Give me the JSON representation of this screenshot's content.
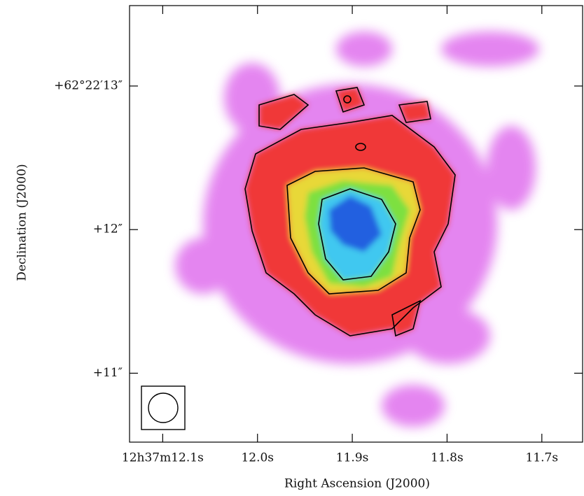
{
  "chart_data": {
    "type": "image",
    "xlabel": "Right Ascension (J2000)",
    "ylabel": "Declination (J2000)",
    "xlim": [
      12.135,
      11.657
    ],
    "xticks": [
      {
        "value": 12.1,
        "label": "12h37m12.1s"
      },
      {
        "value": 12.0,
        "label": "12.0s"
      },
      {
        "value": 11.9,
        "label": "11.9s"
      },
      {
        "value": 11.8,
        "label": "11.8s"
      },
      {
        "value": 11.7,
        "label": "11.7s"
      }
    ],
    "ylim": [
      10.52,
      13.56
    ],
    "yticks": [
      {
        "value": 13,
        "label": "+62°22′13″"
      },
      {
        "value": 12,
        "label": "+12″"
      },
      {
        "value": 11,
        "label": "+11″"
      }
    ]
  }
}
